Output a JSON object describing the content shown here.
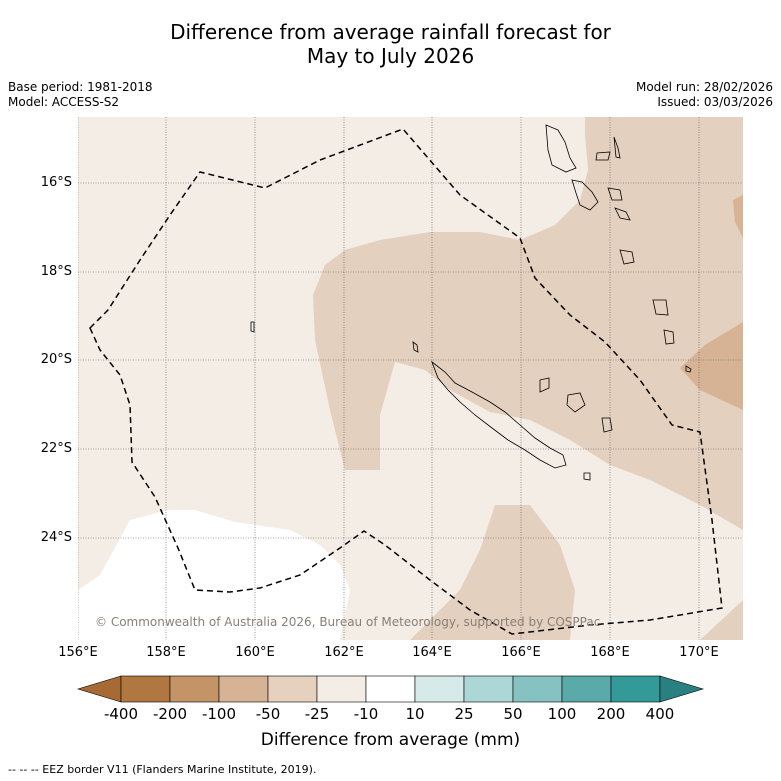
{
  "title_line1": "Difference from average rainfall forecast for",
  "title_line2": "May to July 2026",
  "base_period": "Base period: 1981-2018",
  "model": "Model: ACCESS-S2",
  "model_run": "Model run: 28/02/2026",
  "issued": "Issued: 03/03/2026",
  "copyright": "© Commonwealth of Australia 2026, Bureau of Meteorology, supported by COSPPac",
  "lat_labels": [
    "16°S",
    "18°S",
    "20°S",
    "22°S",
    "24°S"
  ],
  "lon_labels": [
    "156°E",
    "158°E",
    "160°E",
    "162°E",
    "164°E",
    "166°E",
    "168°E",
    "170°E"
  ],
  "colorbar": {
    "title": "Difference from average (mm)",
    "ticks": [
      "-400",
      "-200",
      "-100",
      "-50",
      "-25",
      "-10",
      "10",
      "25",
      "50",
      "100",
      "200",
      "400"
    ],
    "colors": [
      "#a86a35",
      "#b07840",
      "#c49466",
      "#d5b394",
      "#e6d1bf",
      "#f4ede6",
      "#ffffff",
      "#d6eaea",
      "#add6d6",
      "#86c2c2",
      "#5aaaaa",
      "#339999",
      "#2a8080"
    ]
  },
  "legend_footer": "--  --  -- EEZ border V11 (Flanders Marine Institute, 2019).",
  "colors": {
    "light": "#f4ede6",
    "medium": "#e4d0be",
    "dark": "#d5b394",
    "grid": "#555555"
  }
}
